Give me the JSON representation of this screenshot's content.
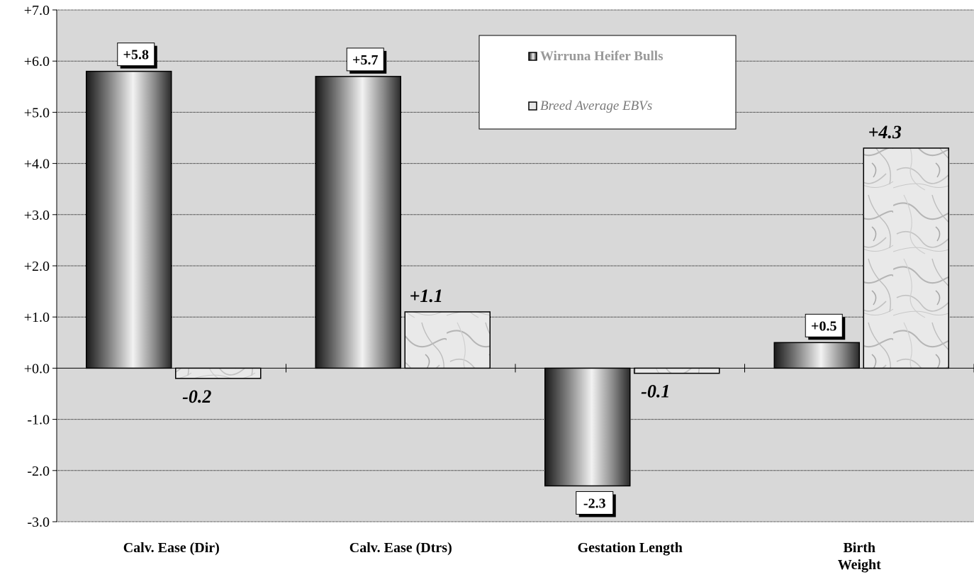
{
  "chart_data": {
    "type": "bar",
    "categories": [
      "Calv. Ease (Dir)",
      "Calv. Ease (Dtrs)",
      "Gestation Length",
      "Birth\nWeight"
    ],
    "series": [
      {
        "name": "Wirruna Heifer Bulls",
        "values": [
          5.8,
          5.7,
          -2.3,
          0.5
        ],
        "labels": [
          "+5.8",
          "+5.7",
          "-2.3",
          "+0.5"
        ]
      },
      {
        "name": "Breed Average EBVs",
        "values": [
          -0.2,
          1.1,
          -0.1,
          4.3
        ],
        "labels": [
          "-0.2",
          "+1.1",
          "-0.1",
          "+4.3"
        ]
      }
    ],
    "ylim": [
      -3.0,
      7.0
    ],
    "yticks": [
      "-3.0",
      "-2.0",
      "-1.0",
      "+0.0",
      "+1.0",
      "+2.0",
      "+3.0",
      "+4.0",
      "+5.0",
      "+6.0",
      "+7.0"
    ],
    "grid": true,
    "legend": "top-center",
    "colors": {
      "plot_bg": "#d8d8d8",
      "series_a": "#808080",
      "series_b": "#e6e6e6"
    }
  }
}
